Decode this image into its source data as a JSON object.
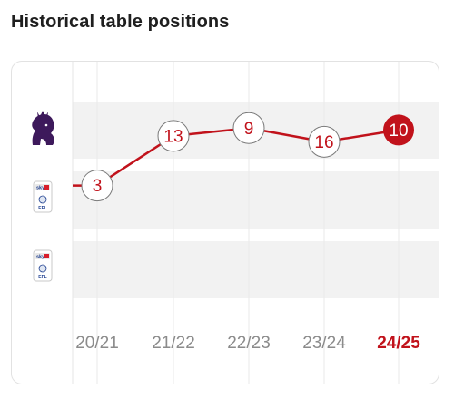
{
  "heading": "Historical table positions",
  "league_badges": [
    {
      "icon": "premier-league-lion-icon",
      "tier": 1
    },
    {
      "icon": "efl-championship-badge-icon",
      "tier": 2,
      "text": "sky bet EFL"
    },
    {
      "icon": "efl-league-one-badge-icon",
      "tier": 3,
      "text": "sky bet EFL"
    }
  ],
  "colors": {
    "accent": "#c1121b",
    "band": "#f2f2f2",
    "tick": "#8b8b8b",
    "line": "#c1121b"
  },
  "chart_data": {
    "type": "line",
    "title": "Historical table positions",
    "categories": [
      "20/21",
      "21/22",
      "22/23",
      "23/24",
      "24/25"
    ],
    "series": [
      {
        "values": [
          3,
          13,
          9,
          16,
          10
        ],
        "tier": [
          2,
          1,
          1,
          1,
          1
        ]
      }
    ],
    "current_season": "24/25",
    "grid": true
  }
}
